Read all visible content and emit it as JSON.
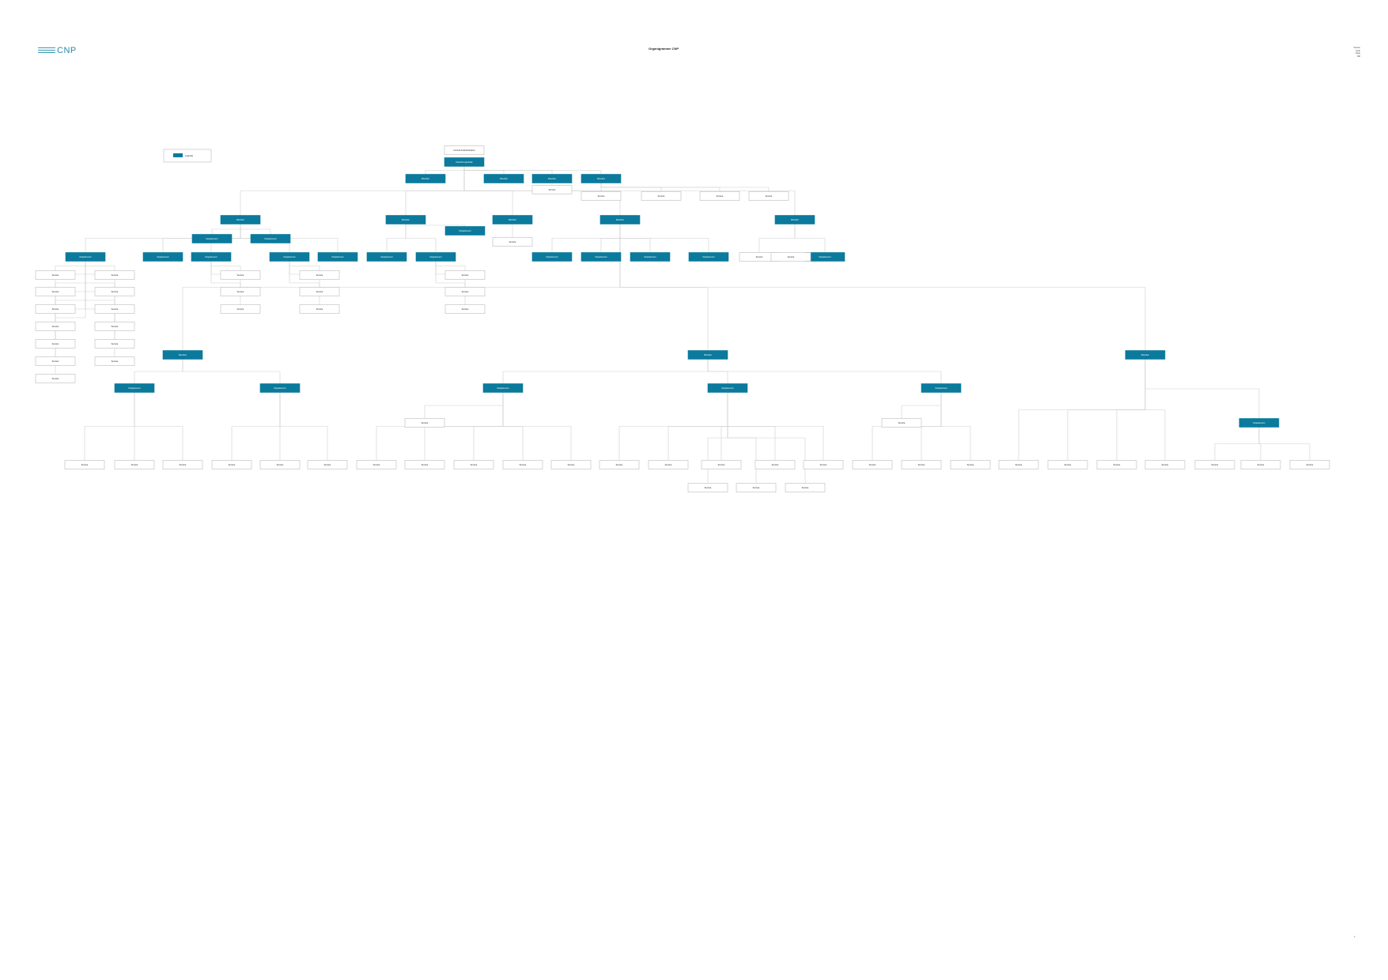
{
  "header": {
    "logo_text": "CNP",
    "title": "Organigramme CNP",
    "meta": [
      "Version",
      "Date",
      "Page",
      "Réf"
    ],
    "page_number": "1"
  },
  "legend": {
    "label": "Légende"
  },
  "colors": {
    "filled": "#0b7a9c",
    "outline": "#bbbbbb",
    "line": "#cfcfcf",
    "filled_text": "#ffffff",
    "outline_text": "#222222"
  },
  "nodes": [
    {
      "id": "top-caption",
      "kind": "outline",
      "text": "Conseil d'administration",
      "sub": ""
    },
    {
      "id": "ceo",
      "kind": "filled",
      "text": "Direction générale",
      "sub": ""
    },
    {
      "id": "s1",
      "kind": "filled",
      "text": "Direction",
      "sub": ""
    },
    {
      "id": "s2",
      "kind": "filled",
      "text": "Direction",
      "sub": ""
    },
    {
      "id": "s3",
      "kind": "filled",
      "text": "Direction",
      "sub": ""
    },
    {
      "id": "s3-n",
      "kind": "outline",
      "text": "Service",
      "sub": ""
    },
    {
      "id": "s4",
      "kind": "filled",
      "text": "Direction",
      "sub": ""
    },
    {
      "id": "s4-a",
      "kind": "outline",
      "text": "Service",
      "sub": ""
    },
    {
      "id": "s4-b",
      "kind": "outline",
      "text": "Service",
      "sub": ""
    },
    {
      "id": "s4-c",
      "kind": "outline",
      "text": "Service",
      "sub": ""
    },
    {
      "id": "s4-d",
      "kind": "outline",
      "text": "Service",
      "sub": ""
    },
    {
      "id": "d1",
      "kind": "filled",
      "text": "Direction",
      "sub": ""
    },
    {
      "id": "d1-a",
      "kind": "filled",
      "text": "Département",
      "sub": ""
    },
    {
      "id": "d1-b",
      "kind": "filled",
      "text": "Département",
      "sub": ""
    },
    {
      "id": "d2",
      "kind": "filled",
      "text": "Direction",
      "sub": ""
    },
    {
      "id": "d2-x",
      "kind": "filled",
      "text": "Département",
      "sub": ""
    },
    {
      "id": "d3",
      "kind": "filled",
      "text": "Direction",
      "sub": ""
    },
    {
      "id": "d3-x",
      "kind": "outline",
      "text": "Service",
      "sub": ""
    },
    {
      "id": "d4",
      "kind": "filled",
      "text": "Direction",
      "sub": ""
    },
    {
      "id": "d5",
      "kind": "filled",
      "text": "Direction",
      "sub": ""
    },
    {
      "id": "u1",
      "kind": "filled",
      "text": "Département",
      "sub": ""
    },
    {
      "id": "u2",
      "kind": "filled",
      "text": "Département",
      "sub": ""
    },
    {
      "id": "u3",
      "kind": "filled",
      "text": "Département",
      "sub": ""
    },
    {
      "id": "u4",
      "kind": "filled",
      "text": "Département",
      "sub": ""
    },
    {
      "id": "u5",
      "kind": "filled",
      "text": "Département",
      "sub": ""
    },
    {
      "id": "u6",
      "kind": "filled",
      "text": "Département",
      "sub": ""
    },
    {
      "id": "u7",
      "kind": "filled",
      "text": "Département",
      "sub": ""
    },
    {
      "id": "u8",
      "kind": "filled",
      "text": "Département",
      "sub": ""
    },
    {
      "id": "u9",
      "kind": "filled",
      "text": "Département",
      "sub": ""
    },
    {
      "id": "u10",
      "kind": "filled",
      "text": "Département",
      "sub": ""
    },
    {
      "id": "u11",
      "kind": "filled",
      "text": "Département",
      "sub": ""
    },
    {
      "id": "u12",
      "kind": "filled",
      "text": "Département",
      "sub": ""
    },
    {
      "id": "u13",
      "kind": "outline",
      "text": "Service",
      "sub": ""
    },
    {
      "id": "u14",
      "kind": "outline",
      "text": "Service",
      "sub": ""
    },
    {
      "id": "l1",
      "kind": "outline",
      "text": "Service",
      "sub": ""
    },
    {
      "id": "l2",
      "kind": "outline",
      "text": "Service",
      "sub": ""
    },
    {
      "id": "l3",
      "kind": "outline",
      "text": "Service",
      "sub": ""
    },
    {
      "id": "l4",
      "kind": "outline",
      "text": "Service",
      "sub": ""
    },
    {
      "id": "l5",
      "kind": "outline",
      "text": "Service",
      "sub": ""
    },
    {
      "id": "l6",
      "kind": "outline",
      "text": "Service",
      "sub": ""
    },
    {
      "id": "l7",
      "kind": "outline",
      "text": "Service",
      "sub": ""
    },
    {
      "id": "r1",
      "kind": "outline",
      "text": "Service",
      "sub": ""
    },
    {
      "id": "r2",
      "kind": "outline",
      "text": "Service",
      "sub": ""
    },
    {
      "id": "r3",
      "kind": "outline",
      "text": "Service",
      "sub": ""
    },
    {
      "id": "r4",
      "kind": "outline",
      "text": "Service",
      "sub": ""
    },
    {
      "id": "r5",
      "kind": "outline",
      "text": "Service",
      "sub": ""
    },
    {
      "id": "r6",
      "kind": "outline",
      "text": "Service",
      "sub": ""
    },
    {
      "id": "r7",
      "kind": "outline",
      "text": "Service",
      "sub": ""
    },
    {
      "id": "q1",
      "kind": "outline",
      "text": "Service",
      "sub": ""
    },
    {
      "id": "q2",
      "kind": "outline",
      "text": "Service",
      "sub": ""
    },
    {
      "id": "q3",
      "kind": "outline",
      "text": "Service",
      "sub": ""
    },
    {
      "id": "w1",
      "kind": "outline",
      "text": "Service",
      "sub": ""
    },
    {
      "id": "w2",
      "kind": "outline",
      "text": "Service",
      "sub": ""
    },
    {
      "id": "w3",
      "kind": "outline",
      "text": "Service",
      "sub": ""
    },
    {
      "id": "m1",
      "kind": "outline",
      "text": "Service",
      "sub": ""
    },
    {
      "id": "m2",
      "kind": "outline",
      "text": "Service",
      "sub": ""
    },
    {
      "id": "m3",
      "kind": "outline",
      "text": "Service",
      "sub": ""
    },
    {
      "id": "e1",
      "kind": "outline",
      "text": "Service",
      "sub": ""
    },
    {
      "id": "e2",
      "kind": "outline",
      "text": "Service",
      "sub": ""
    },
    {
      "id": "B1",
      "kind": "filled",
      "text": "Direction",
      "sub": ""
    },
    {
      "id": "B2",
      "kind": "filled",
      "text": "Direction",
      "sub": ""
    },
    {
      "id": "B3",
      "kind": "filled",
      "text": "Direction",
      "sub": ""
    },
    {
      "id": "b1",
      "kind": "filled",
      "text": "Département",
      "sub": ""
    },
    {
      "id": "b2",
      "kind": "filled",
      "text": "Département",
      "sub": ""
    },
    {
      "id": "b3",
      "kind": "filled",
      "text": "Département",
      "sub": ""
    },
    {
      "id": "b4",
      "kind": "filled",
      "text": "Département",
      "sub": ""
    },
    {
      "id": "b5",
      "kind": "filled",
      "text": "Département",
      "sub": ""
    },
    {
      "id": "b6",
      "kind": "filled",
      "text": "Département",
      "sub": ""
    },
    {
      "id": "k1",
      "kind": "outline",
      "text": "Service",
      "sub": ""
    },
    {
      "id": "k2",
      "kind": "outline",
      "text": "Service",
      "sub": ""
    },
    {
      "id": "x1",
      "kind": "outline",
      "text": "Service",
      "sub": ""
    },
    {
      "id": "x2",
      "kind": "outline",
      "text": "Service",
      "sub": ""
    },
    {
      "id": "x3",
      "kind": "outline",
      "text": "Service",
      "sub": ""
    },
    {
      "id": "x4",
      "kind": "outline",
      "text": "Service",
      "sub": ""
    },
    {
      "id": "x5",
      "kind": "outline",
      "text": "Service",
      "sub": ""
    },
    {
      "id": "x6",
      "kind": "outline",
      "text": "Service",
      "sub": ""
    },
    {
      "id": "x7",
      "kind": "outline",
      "text": "Service",
      "sub": ""
    },
    {
      "id": "x8",
      "kind": "outline",
      "text": "Service",
      "sub": ""
    },
    {
      "id": "x9",
      "kind": "outline",
      "text": "Service",
      "sub": ""
    },
    {
      "id": "x10",
      "kind": "outline",
      "text": "Service",
      "sub": ""
    },
    {
      "id": "x11",
      "kind": "outline",
      "text": "Service",
      "sub": ""
    },
    {
      "id": "x12",
      "kind": "outline",
      "text": "Service",
      "sub": ""
    },
    {
      "id": "x13",
      "kind": "outline",
      "text": "Service",
      "sub": ""
    },
    {
      "id": "x14",
      "kind": "outline",
      "text": "Service",
      "sub": ""
    },
    {
      "id": "x15",
      "kind": "outline",
      "text": "Service",
      "sub": ""
    },
    {
      "id": "x16",
      "kind": "outline",
      "text": "Service",
      "sub": ""
    },
    {
      "id": "x17",
      "kind": "outline",
      "text": "Service",
      "sub": ""
    },
    {
      "id": "x18",
      "kind": "outline",
      "text": "Service",
      "sub": ""
    },
    {
      "id": "x19",
      "kind": "outline",
      "text": "Service",
      "sub": ""
    },
    {
      "id": "x20",
      "kind": "outline",
      "text": "Service",
      "sub": ""
    },
    {
      "id": "x21",
      "kind": "outline",
      "text": "Service",
      "sub": ""
    },
    {
      "id": "x22",
      "kind": "outline",
      "text": "Service",
      "sub": ""
    },
    {
      "id": "x23",
      "kind": "outline",
      "text": "Service",
      "sub": ""
    },
    {
      "id": "x24",
      "kind": "outline",
      "text": "Service",
      "sub": ""
    },
    {
      "id": "x25",
      "kind": "outline",
      "text": "Service",
      "sub": ""
    },
    {
      "id": "x26",
      "kind": "outline",
      "text": "Service",
      "sub": ""
    },
    {
      "id": "x27",
      "kind": "outline",
      "text": "Service",
      "sub": ""
    },
    {
      "id": "x28",
      "kind": "outline",
      "text": "Service",
      "sub": ""
    },
    {
      "id": "x29",
      "kind": "outline",
      "text": "Service",
      "sub": ""
    },
    {
      "id": "x30",
      "kind": "outline",
      "text": "Service",
      "sub": ""
    },
    {
      "id": "x31",
      "kind": "outline",
      "text": "Service",
      "sub": ""
    },
    {
      "id": "x32",
      "kind": "outline",
      "text": "Service",
      "sub": ""
    },
    {
      "id": "x33",
      "kind": "outline",
      "text": "Service",
      "sub": ""
    },
    {
      "id": "x34",
      "kind": "outline",
      "text": "Service",
      "sub": ""
    },
    {
      "id": "x35",
      "kind": "outline",
      "text": "Service",
      "sub": ""
    }
  ]
}
